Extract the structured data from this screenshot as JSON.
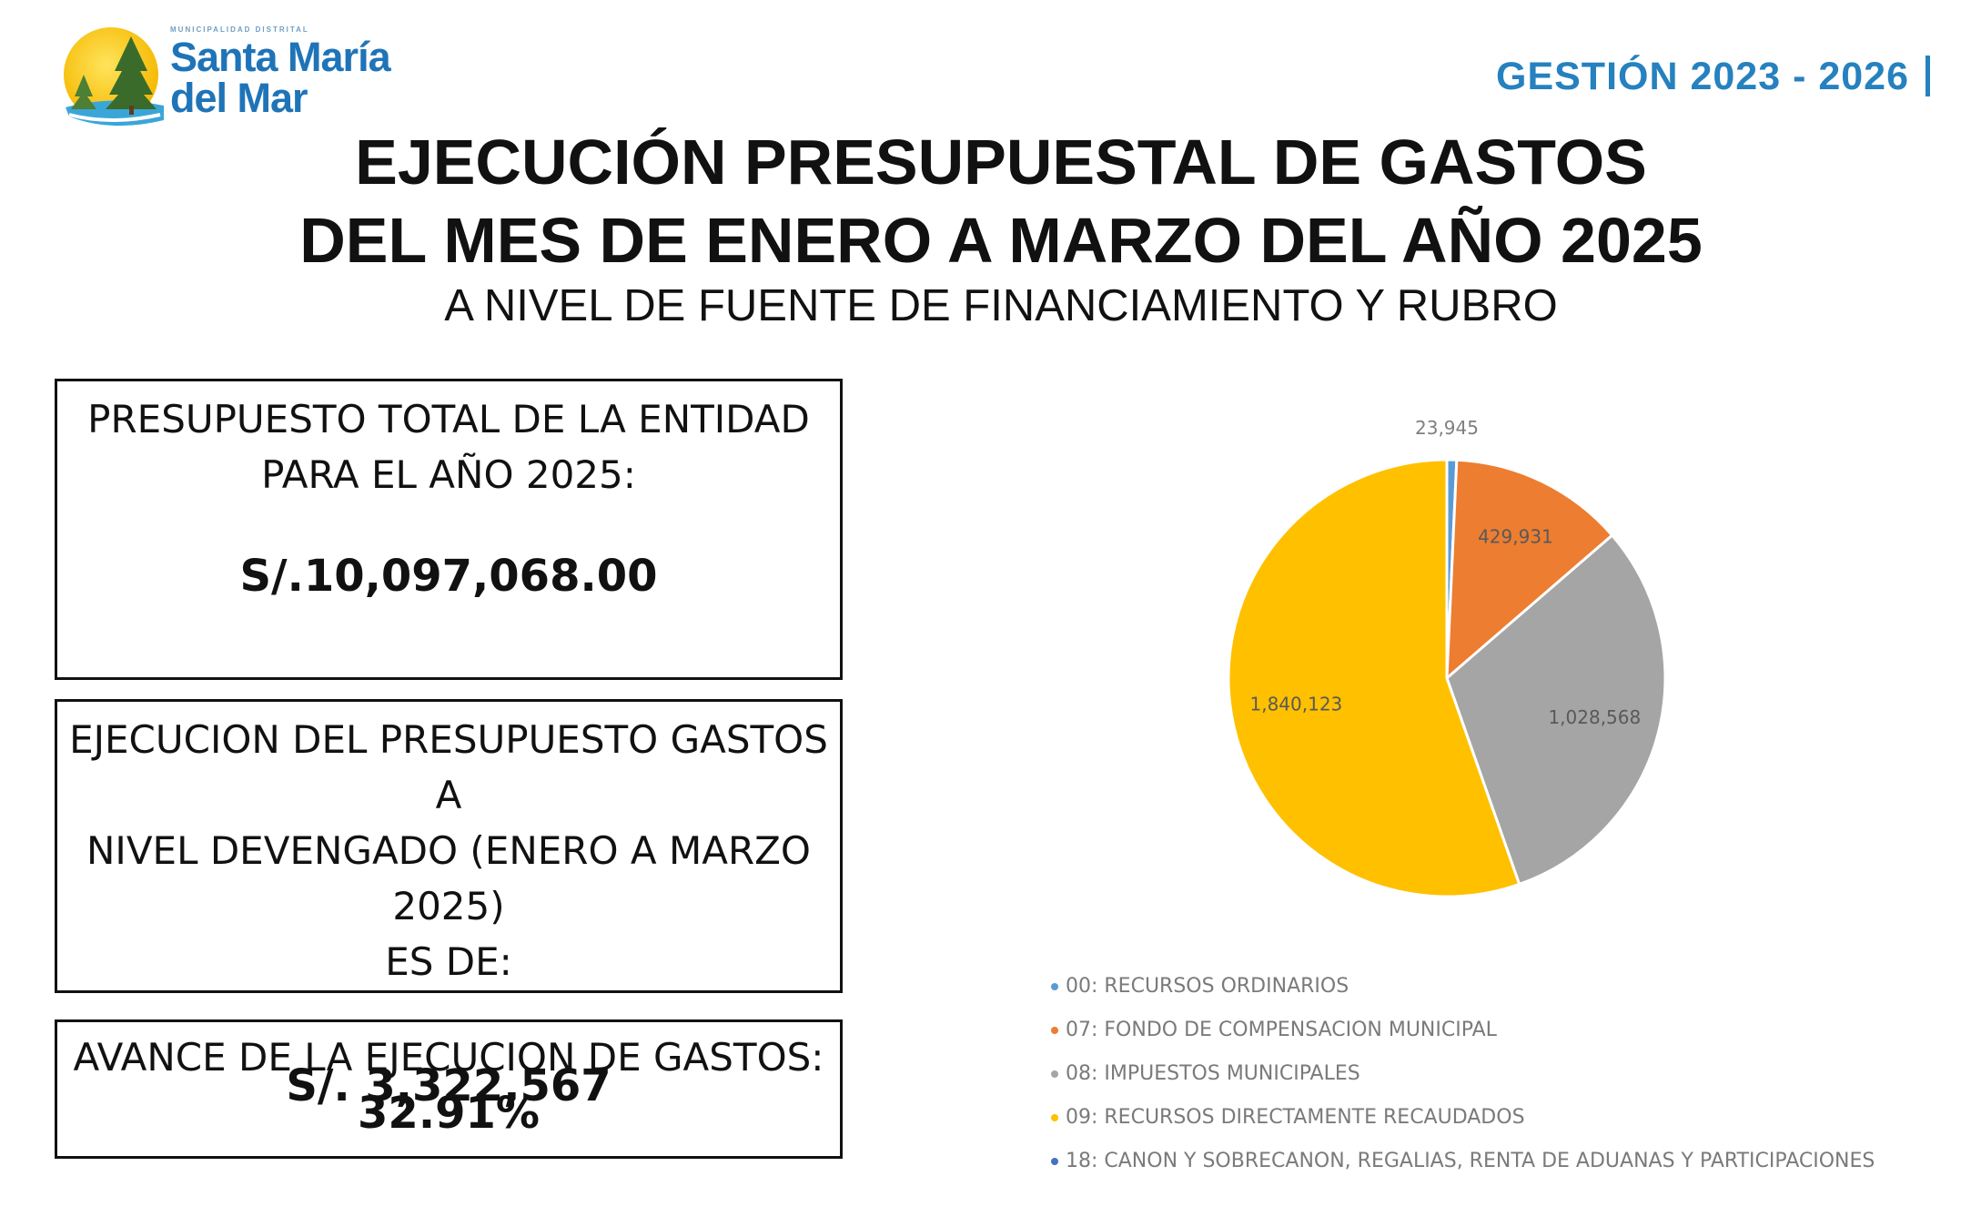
{
  "header": {
    "logo_micro_text": "MUNICIPALIDAD DISTRITAL",
    "brand_line1": "Santa María",
    "brand_line2": "del Mar",
    "gestion": "GESTIÓN 2023 - 2026"
  },
  "title": {
    "line1": "EJECUCIÓN PRESUPUESTAL DE GASTOS",
    "line2": "DEL MES DE ENERO A MARZO DEL AÑO 2025",
    "subtitle": "A NIVEL DE FUENTE DE FINANCIAMIENTO Y RUBRO"
  },
  "boxes": {
    "budget": {
      "label_line1": "PRESUPUESTO TOTAL DE LA ENTIDAD",
      "label_line2": "PARA EL AÑO 2025:",
      "value": "S/.10,097,068.00"
    },
    "execution": {
      "label_line1": "EJECUCION DEL PRESUPUESTO GASTOS A",
      "label_line2": "NIVEL DEVENGADO (ENERO A MARZO 2025)",
      "label_line3": "ES DE:",
      "value": "S/. 3,322,567"
    },
    "progress": {
      "label": "AVANCE DE LA EJECUCION DE GASTOS:",
      "value": "32.91%"
    }
  },
  "chart_data": {
    "type": "pie",
    "title": "",
    "categories": [
      "00: RECURSOS ORDINARIOS",
      "07: FONDO DE COMPENSACION MUNICIPAL",
      "08: IMPUESTOS MUNICIPALES",
      "09: RECURSOS DIRECTAMENTE RECAUDADOS",
      "18: CANON Y SOBRECANON, REGALIAS, RENTA DE ADUANAS Y PARTICIPACIONES"
    ],
    "values": [
      23945,
      429931,
      1028568,
      1840123,
      0
    ],
    "labels": [
      "23,945",
      "429,931",
      "1,028,568",
      "1,840,123",
      ""
    ],
    "colors": [
      "#5b9bd5",
      "#ed7d31",
      "#a5a5a5",
      "#ffc000",
      "#4472c4"
    ],
    "legend_position": "bottom"
  }
}
